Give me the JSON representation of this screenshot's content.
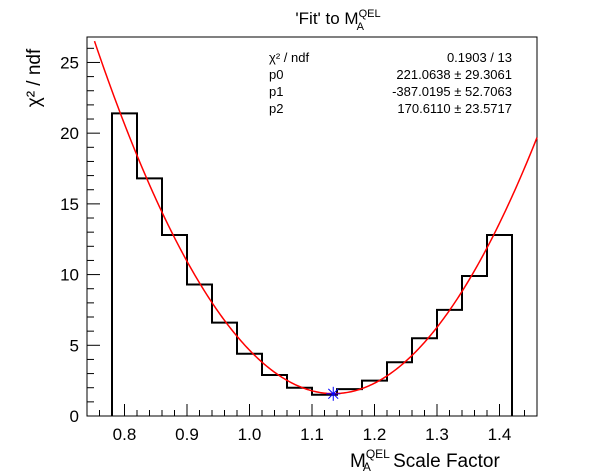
{
  "chart_data": {
    "type": "bar",
    "title_main": "'Fit' to M",
    "title_sub": "A",
    "title_sup": "QEL",
    "xlabel_main": "M",
    "xlabel_sub": "A",
    "xlabel_sup": "QEL",
    "xlabel_rest": " Scale Factor",
    "ylabel": "χ² / ndf",
    "xlim": [
      0.74,
      1.46
    ],
    "ylim": [
      0,
      26.8
    ],
    "xticks": [
      0.8,
      0.9,
      1.0,
      1.1,
      1.2,
      1.3,
      1.4
    ],
    "xtick_labels": [
      "0.8",
      "0.9",
      "1.0",
      "1.1",
      "1.2",
      "1.3",
      "1.4"
    ],
    "yticks": [
      0,
      5,
      10,
      15,
      20,
      25
    ],
    "ytick_labels": [
      "0",
      "5",
      "10",
      "15",
      "20",
      "25"
    ],
    "histogram": {
      "name": "chi2/ndf",
      "bin_edges": [
        0.78,
        0.82,
        0.86,
        0.9,
        0.94,
        0.98,
        1.02,
        1.06,
        1.1,
        1.14,
        1.18,
        1.22,
        1.26,
        1.3,
        1.34,
        1.38,
        1.42
      ],
      "values": [
        21.4,
        16.8,
        12.8,
        9.3,
        6.6,
        4.4,
        2.9,
        2.0,
        1.5,
        1.9,
        2.5,
        3.8,
        5.5,
        7.5,
        9.9,
        12.8
      ]
    },
    "fit": {
      "color": "#ff0000",
      "p0": 221.0638,
      "p1": -387.0195,
      "p2": 170.611
    },
    "minimum_marker": {
      "x": 1.134,
      "y": 1.57,
      "color": "#0000ff"
    },
    "stats_box": {
      "rows": [
        {
          "label": "χ² / ndf",
          "value": "0.1903 / 13"
        },
        {
          "label": "p0",
          "value": "221.0638 ± 29.3061"
        },
        {
          "label": "p1",
          "value": "-387.0195 ± 52.7063"
        },
        {
          "label": "p2",
          "value": "170.6110 ± 23.5717"
        }
      ]
    }
  }
}
